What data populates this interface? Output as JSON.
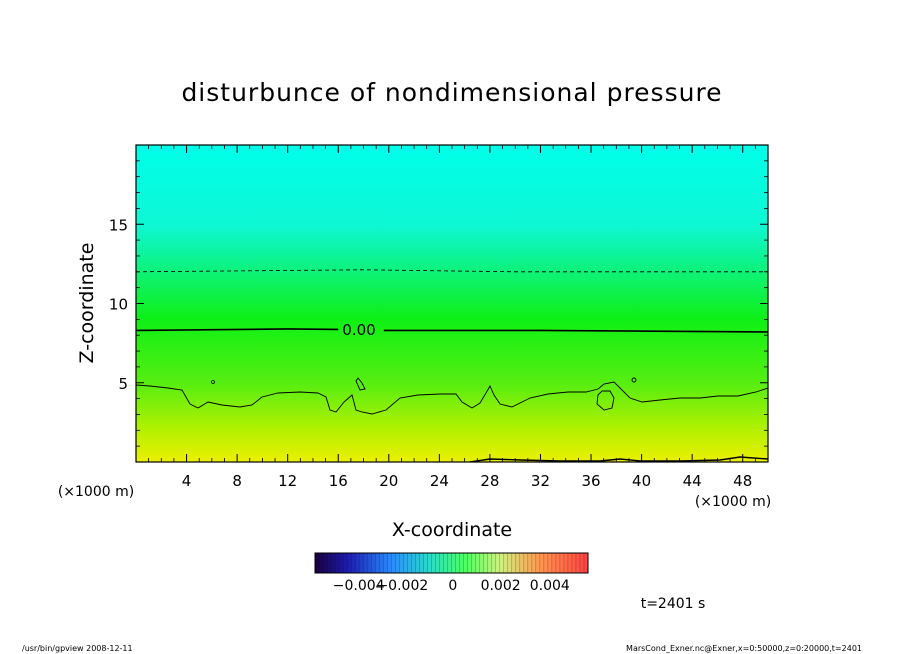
{
  "chart_data": {
    "type": "heatmap",
    "title": "disturbunce of nondimensional pressure",
    "xlabel": "X-coordinate",
    "ylabel": "Z-coordinate",
    "x_unit": "(×1000 m)",
    "y_unit": "(×1000 m)",
    "xlim": [
      0,
      50
    ],
    "ylim": [
      0,
      20
    ],
    "x_ticks": [
      "4",
      "8",
      "12",
      "16",
      "20",
      "24",
      "28",
      "32",
      "36",
      "40",
      "44",
      "48"
    ],
    "y_ticks": [
      "5",
      "10",
      "15"
    ],
    "contour_label": "0.00",
    "contours": [
      {
        "level": -0.002,
        "style": "dashed",
        "z": 12.0
      },
      {
        "level": 0.0,
        "style": "solid",
        "z": 8.3
      }
    ],
    "color_gradient": [
      {
        "z": 0,
        "color": "#ecf000"
      },
      {
        "z": 2,
        "color": "#b4f000"
      },
      {
        "z": 5,
        "color": "#57ee11"
      },
      {
        "z": 9,
        "color": "#0ef015"
      },
      {
        "z": 13,
        "color": "#0df399"
      },
      {
        "z": 15,
        "color": "#0ef7d4"
      },
      {
        "z": 20,
        "color": "#00ffea"
      }
    ],
    "colorbar": {
      "tick_labels": [
        "-0.004",
        "-0.002",
        "0",
        "0.002",
        "0.004"
      ]
    },
    "time_label": "t=2401 s"
  },
  "footer": {
    "left": "/usr/bin/gpview   2008-12-11",
    "right": "MarsCond_Exner.nc@Exner,x=0:50000,z=0:20000,t=2401"
  }
}
